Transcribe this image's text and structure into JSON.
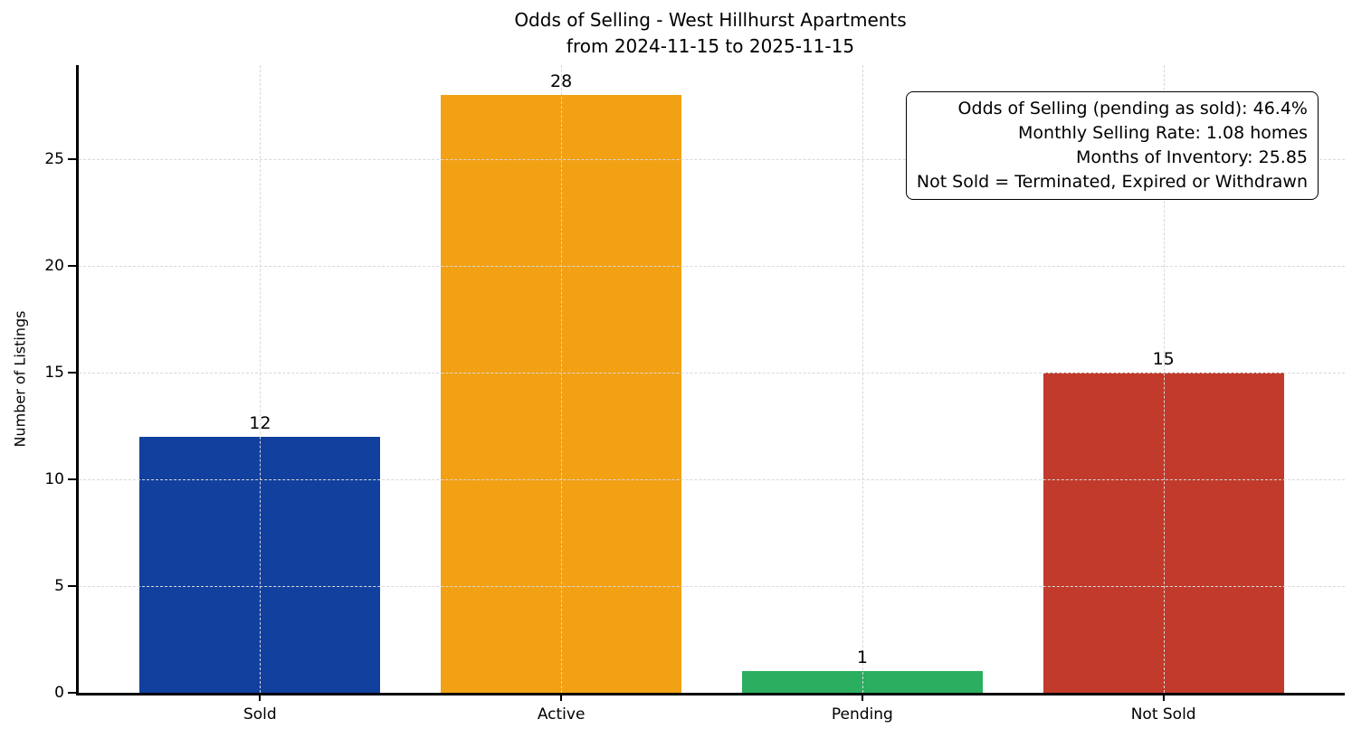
{
  "chart_data": {
    "type": "bar",
    "title": "Odds of Selling - West Hillhurst Apartments",
    "subtitle": "from 2024-11-15 to 2025-11-15",
    "xlabel": "",
    "ylabel": "Number of Listings",
    "categories": [
      "Sold",
      "Active",
      "Pending",
      "Not Sold"
    ],
    "values": [
      12,
      28,
      1,
      15
    ],
    "bar_labels": [
      "12",
      "28",
      "1",
      "15"
    ],
    "bar_colors": [
      "#11409E",
      "#F2A115",
      "#2BAE5F",
      "#C13A2B"
    ],
    "yticks": [
      0,
      5,
      10,
      15,
      20,
      25
    ],
    "ylim": [
      0,
      29.4
    ],
    "grid": "dashed light-gray horizontal and vertical gridlines, drawn over bars",
    "legend_position": "none",
    "annotation_box": {
      "position": "top-right",
      "lines": [
        "Odds of Selling (pending as sold): 46.4%",
        "Monthly Selling Rate: 1.08 homes",
        "Months of Inventory: 25.85",
        "Not Sold = Terminated, Expired or Withdrawn"
      ],
      "stats": {
        "odds_of_selling_pending_as_sold_pct": 46.4,
        "monthly_selling_rate_homes": 1.08,
        "months_of_inventory": 25.85
      }
    }
  },
  "colors": {
    "background": "#ffffff",
    "axis": "#000000",
    "grid": "#d8d8d8",
    "text": "#000000"
  }
}
